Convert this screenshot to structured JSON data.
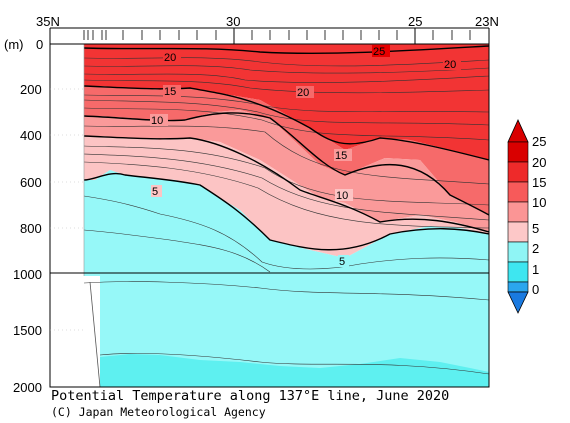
{
  "caption": {
    "title": "Potential Temperature along 137°E line, June 2020",
    "credit": "(C) Japan Meteorological Agency"
  },
  "chart_data": {
    "type": "contour-section",
    "x_axis": {
      "ticks": [
        "35N",
        "30",
        "25",
        "23N"
      ],
      "range": [
        "35N",
        "23N"
      ]
    },
    "y_axis": {
      "unit_label": "(m)",
      "upper_ticks": [
        "0",
        "200",
        "400",
        "600",
        "800",
        "1000"
      ],
      "lower_ticks": [
        "1500",
        "2000"
      ],
      "range_m": [
        0,
        2000
      ],
      "scale_break_m": 1000
    },
    "colorbar": {
      "labels": [
        "25",
        "20",
        "15",
        "10",
        "5",
        "2",
        "1",
        "0"
      ],
      "colors": [
        "#d90000",
        "#ee2a2a",
        "#f75a5a",
        "#fb9595",
        "#fdc8c8",
        "#8ff5f5",
        "#3ee6f0",
        "#2ba6ee",
        "#1a7ae0"
      ]
    },
    "contour_labels": [
      "20",
      "25",
      "20",
      "15",
      "20",
      "10",
      "15",
      "5",
      "10",
      "5"
    ],
    "colors": {
      "band_25_plus": "#e60000",
      "band_20_25": "#f23434",
      "band_15_20": "#f66a6a",
      "band_10_15": "#fa9a9a",
      "band_5_10": "#fcc4c4",
      "band_2_5": "#96f8f8",
      "band_1_2": "#5ef0f0"
    }
  }
}
